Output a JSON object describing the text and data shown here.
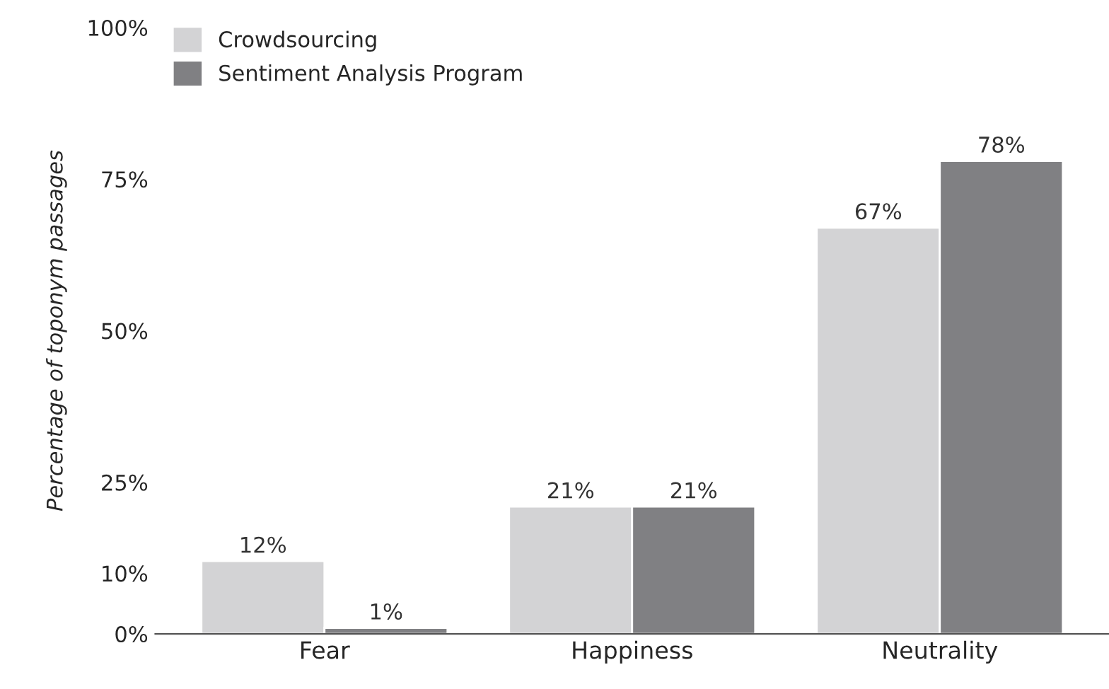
{
  "chart_data": {
    "type": "bar",
    "ylabel": "Percentage of toponym passages",
    "categories": [
      "Fear",
      "Happiness",
      "Neutrality"
    ],
    "series": [
      {
        "name": "Crowdsourcing",
        "color": "#d3d3d5",
        "values": [
          12,
          21,
          67
        ],
        "value_labels": [
          "12%",
          "21%",
          "67%"
        ]
      },
      {
        "name": "Sentiment Analysis Program",
        "color": "#808083",
        "values": [
          1,
          21,
          78
        ],
        "value_labels": [
          "1%",
          "21%",
          "78%"
        ]
      }
    ],
    "ylim": [
      0,
      100
    ],
    "yticks": [
      {
        "value": 0,
        "label": "0%"
      },
      {
        "value": 10,
        "label": "10%"
      },
      {
        "value": 25,
        "label": "25%"
      },
      {
        "value": 50,
        "label": "50%"
      },
      {
        "value": 75,
        "label": "75%"
      },
      {
        "value": 100,
        "label": "100%"
      }
    ],
    "grid": false,
    "legend": "top left"
  }
}
